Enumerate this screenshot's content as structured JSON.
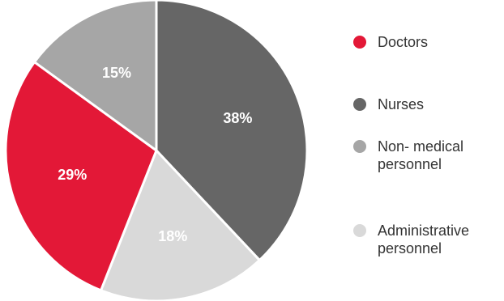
{
  "chart_data": {
    "type": "pie",
    "categories": [
      "Doctors",
      "Nurses",
      "Non- medical\npersonnel",
      "Administrative\npersonnel"
    ],
    "series": [
      {
        "values": [
          29,
          38,
          15,
          18
        ]
      }
    ],
    "value_labels": [
      "29%",
      "38%",
      "15%",
      "18%"
    ],
    "colors": [
      "#e31837",
      "#666666",
      "#a6a6a6",
      "#d9d9d9"
    ],
    "legend_position": "right"
  },
  "legend": [
    {
      "label": "Doctors",
      "color": "#e31837"
    },
    {
      "label": "Nurses",
      "color": "#666666"
    },
    {
      "label": "Non- medical\npersonnel",
      "color": "#a6a6a6"
    },
    {
      "label": "Administrative\npersonnel",
      "color": "#d9d9d9"
    }
  ]
}
